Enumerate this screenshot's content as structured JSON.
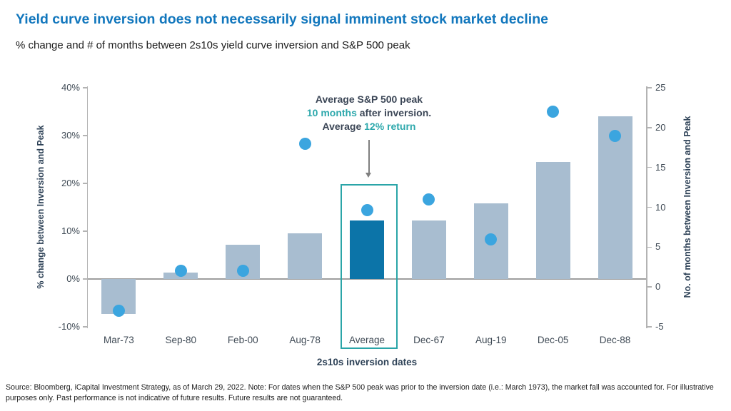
{
  "header": {
    "title": "Yield curve inversion does not necessarily signal imminent stock market decline",
    "subtitle": "% change and # of months between 2s10s yield curve inversion and S&P 500 peak"
  },
  "colors": {
    "title_blue": "#1277BD",
    "bar_light": "#a8bdd0",
    "bar_highlight": "#0c74a8",
    "dot_blue": "#3ba5df",
    "teal_accent": "#2da8ac",
    "navy_text": "#2e4257",
    "tick_text": "#3f4a55",
    "axis_line": "#b3b3b3",
    "zero_line": "#9e9e9e",
    "arrow_gray": "#7f7f7f"
  },
  "chart_data": {
    "type": "bar",
    "title": "Yield curve inversion does not necessarily signal imminent stock market decline",
    "subtitle": "% change and # of months between 2s10s yield curve inversion and S&P 500 peak",
    "categories": [
      "Mar-73",
      "Sep-80",
      "Feb-00",
      "Aug-78",
      "Average",
      "Dec-67",
      "Aug-19",
      "Dec-05",
      "Dec-88"
    ],
    "series": [
      {
        "name": "% change between Inversion and Peak",
        "type": "bar",
        "axis": "left",
        "values": [
          -7.3,
          1.4,
          7.2,
          9.6,
          12.2,
          12.3,
          15.8,
          24.5,
          34
        ]
      },
      {
        "name": "No. of months between Inversion and Peak",
        "type": "scatter",
        "axis": "right",
        "values": [
          -3,
          2,
          2,
          18,
          9.6,
          11,
          6,
          22,
          19
        ]
      }
    ],
    "highlight_category": "Average",
    "xlabel": "2s10s inversion dates",
    "left_axis": {
      "label": "% change between Inversion and Peak",
      "range": [
        -10,
        40
      ],
      "ticks": [
        {
          "value": 40,
          "label": "40%"
        },
        {
          "value": 30,
          "label": "30%"
        },
        {
          "value": 20,
          "label": "20%"
        },
        {
          "value": 10,
          "label": "10%"
        },
        {
          "value": 0,
          "label": "0%"
        },
        {
          "value": -10,
          "label": "-10%"
        }
      ]
    },
    "right_axis": {
      "label": "No. of months between Inversion and Peak",
      "range": [
        -5,
        25
      ],
      "ticks": [
        {
          "value": 25,
          "label": "25"
        },
        {
          "value": 20,
          "label": "20"
        },
        {
          "value": 15,
          "label": "15"
        },
        {
          "value": 10,
          "label": "10"
        },
        {
          "value": 5,
          "label": "5"
        },
        {
          "value": 0,
          "label": "0"
        },
        {
          "value": -5,
          "label": "-5"
        }
      ]
    },
    "annotation": {
      "lines": [
        [
          {
            "text": "Average S&P 500 peak",
            "accent": false
          }
        ],
        [
          {
            "text": "10 months",
            "accent": true
          },
          {
            "text": " after inversion.",
            "accent": false
          }
        ],
        [
          {
            "text": "Average ",
            "accent": false
          },
          {
            "text": "12% return",
            "accent": true
          }
        ]
      ]
    },
    "grid": false,
    "legend": "none"
  },
  "footer": {
    "source": "Source: Bloomberg, iCapital Investment Strategy, as of March 29, 2022. Note: For dates when the S&P 500 peak was prior to the inversion date (i.e.: March 1973), the market fall was accounted for. For illustrative purposes only. Past performance is not indicative of future results. Future results are not guaranteed."
  }
}
